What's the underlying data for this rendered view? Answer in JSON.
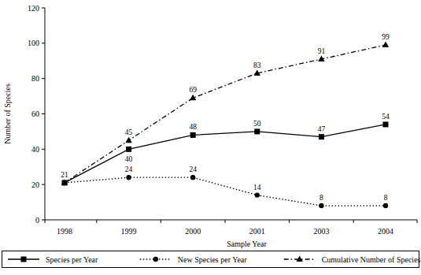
{
  "chart_data": {
    "type": "line",
    "x_label": "Sample Year",
    "y_label": "Number of Species",
    "categories": [
      "1998",
      "1999",
      "2000",
      "2001",
      "2003",
      "2004"
    ],
    "series": [
      {
        "name": "Species per Year",
        "color": "#000000",
        "marker": "square",
        "line_style": "solid",
        "values": [
          21,
          40,
          48,
          50,
          47,
          54
        ]
      },
      {
        "name": "New Species per Year",
        "color": "#000000",
        "marker": "circle",
        "line_style": "dotted",
        "values": [
          21,
          24,
          24,
          14,
          8,
          8
        ]
      },
      {
        "name": "Cumulative Number of Species",
        "color": "#000000",
        "marker": "triangle",
        "line_style": "dashdot",
        "values": [
          21,
          45,
          69,
          83,
          91,
          99
        ]
      }
    ],
    "ylim": [
      0,
      120
    ],
    "yticks": [
      0,
      20,
      40,
      60,
      80,
      100,
      120
    ],
    "grid": false,
    "legend": "bottom",
    "data_labels": true
  }
}
